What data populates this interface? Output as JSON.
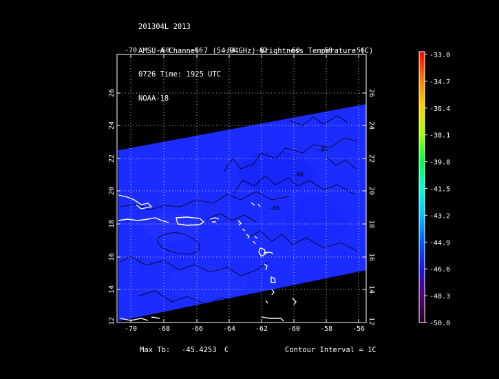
{
  "header": {
    "line1": "201304L 2013",
    "line2": "AMSU-A Channel 7 (54.94GHz) Brightness Temperature (C)",
    "line3": "0726 Time: 1925 UTC",
    "line4": "NOAA-18"
  },
  "map": {
    "lon_ticks": [
      "-70",
      "-68",
      "-66",
      "-64",
      "-62",
      "-60",
      "-58",
      "-56"
    ],
    "lat_ticks": [
      "14",
      "16",
      "18",
      "20",
      "22",
      "24",
      "26"
    ],
    "lat_bottom_label": "12",
    "contour_labels": [
      "-46",
      "-46",
      "-46"
    ],
    "swath_color": "#1a2cff",
    "background": "#000000",
    "coast_color": "#ffffff"
  },
  "colorbar": {
    "labels": [
      "-33.0",
      "-34.7",
      "-36.4",
      "-38.1",
      "-39.8",
      "-41.5",
      "-43.2",
      "-44.9",
      "-46.6",
      "-48.3",
      "-50.0"
    ],
    "colors": [
      "#ff0000",
      "#ff7a00",
      "#ffd000",
      "#a8ff00",
      "#00ff40",
      "#00ffd8",
      "#00c8ff",
      "#0060ff",
      "#1e10e8",
      "#5a007a",
      "#2a0020"
    ]
  },
  "footer": {
    "max_label": "Max Tb:",
    "max_value": "-45.4253",
    "max_unit": "C",
    "contour": "Contour Interval = 1C"
  }
}
